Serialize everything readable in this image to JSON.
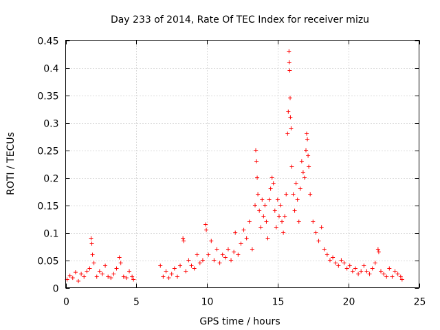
{
  "chart_data": {
    "type": "scatter",
    "title": "Day 233 of 2014, Rate Of TEC Index for receiver mizu",
    "xlabel": "GPS time / hours",
    "ylabel": "ROTI / TECUs",
    "xlim": [
      0,
      25
    ],
    "ylim": [
      0,
      0.45
    ],
    "x_ticks": [
      0,
      5,
      10,
      15,
      20,
      25
    ],
    "x_tick_labels": [
      "0",
      "5",
      "10",
      "15",
      "20",
      "25"
    ],
    "y_ticks": [
      0,
      0.05,
      0.1,
      0.15,
      0.2,
      0.25,
      0.3,
      0.35,
      0.4,
      0.45
    ],
    "y_tick_labels": [
      "0",
      "0.05",
      "0.1",
      "0.15",
      "0.2",
      "0.25",
      "0.3",
      "0.35",
      "0.4",
      "0.45"
    ],
    "grid": true,
    "marker": "+",
    "color": "#ff0000",
    "series": [
      {
        "name": "ROTI",
        "points": [
          [
            0.1,
            0.015
          ],
          [
            0.3,
            0.022
          ],
          [
            0.5,
            0.018
          ],
          [
            0.7,
            0.028
          ],
          [
            0.9,
            0.012
          ],
          [
            1.1,
            0.025
          ],
          [
            1.3,
            0.02
          ],
          [
            1.5,
            0.03
          ],
          [
            1.7,
            0.035
          ],
          [
            1.8,
            0.09
          ],
          [
            1.85,
            0.08
          ],
          [
            1.9,
            0.06
          ],
          [
            2.0,
            0.045
          ],
          [
            2.2,
            0.02
          ],
          [
            2.4,
            0.03
          ],
          [
            2.6,
            0.025
          ],
          [
            2.8,
            0.04
          ],
          [
            3.0,
            0.02
          ],
          [
            3.2,
            0.018
          ],
          [
            3.4,
            0.025
          ],
          [
            3.6,
            0.035
          ],
          [
            3.8,
            0.055
          ],
          [
            3.9,
            0.045
          ],
          [
            4.1,
            0.02
          ],
          [
            4.3,
            0.018
          ],
          [
            4.5,
            0.03
          ],
          [
            4.7,
            0.02
          ],
          [
            4.8,
            0.015
          ],
          [
            6.7,
            0.04
          ],
          [
            6.9,
            0.02
          ],
          [
            7.1,
            0.03
          ],
          [
            7.3,
            0.018
          ],
          [
            7.5,
            0.025
          ],
          [
            7.7,
            0.035
          ],
          [
            7.9,
            0.02
          ],
          [
            8.1,
            0.04
          ],
          [
            8.3,
            0.09
          ],
          [
            8.35,
            0.085
          ],
          [
            8.5,
            0.03
          ],
          [
            8.7,
            0.05
          ],
          [
            8.9,
            0.04
          ],
          [
            9.1,
            0.035
          ],
          [
            9.3,
            0.06
          ],
          [
            9.5,
            0.045
          ],
          [
            9.7,
            0.05
          ],
          [
            9.9,
            0.115
          ],
          [
            9.95,
            0.105
          ],
          [
            10.1,
            0.06
          ],
          [
            10.3,
            0.085
          ],
          [
            10.5,
            0.05
          ],
          [
            10.7,
            0.07
          ],
          [
            10.9,
            0.045
          ],
          [
            11.1,
            0.06
          ],
          [
            11.3,
            0.055
          ],
          [
            11.5,
            0.07
          ],
          [
            11.7,
            0.05
          ],
          [
            11.9,
            0.065
          ],
          [
            12.0,
            0.1
          ],
          [
            12.2,
            0.06
          ],
          [
            12.4,
            0.08
          ],
          [
            12.6,
            0.105
          ],
          [
            12.8,
            0.09
          ],
          [
            13.0,
            0.12
          ],
          [
            13.2,
            0.07
          ],
          [
            13.4,
            0.15
          ],
          [
            13.45,
            0.25
          ],
          [
            13.5,
            0.23
          ],
          [
            13.55,
            0.2
          ],
          [
            13.6,
            0.17
          ],
          [
            13.7,
            0.14
          ],
          [
            13.8,
            0.11
          ],
          [
            13.9,
            0.16
          ],
          [
            14.0,
            0.13
          ],
          [
            14.1,
            0.15
          ],
          [
            14.2,
            0.12
          ],
          [
            14.3,
            0.09
          ],
          [
            14.4,
            0.16
          ],
          [
            14.5,
            0.18
          ],
          [
            14.6,
            0.2
          ],
          [
            14.7,
            0.19
          ],
          [
            14.8,
            0.14
          ],
          [
            14.9,
            0.11
          ],
          [
            15.0,
            0.16
          ],
          [
            15.1,
            0.13
          ],
          [
            15.2,
            0.15
          ],
          [
            15.3,
            0.12
          ],
          [
            15.4,
            0.1
          ],
          [
            15.5,
            0.13
          ],
          [
            15.6,
            0.17
          ],
          [
            15.7,
            0.28
          ],
          [
            15.75,
            0.32
          ],
          [
            15.8,
            0.43
          ],
          [
            15.82,
            0.41
          ],
          [
            15.85,
            0.395
          ],
          [
            15.88,
            0.345
          ],
          [
            15.9,
            0.31
          ],
          [
            15.95,
            0.29
          ],
          [
            16.0,
            0.22
          ],
          [
            16.1,
            0.17
          ],
          [
            16.2,
            0.14
          ],
          [
            16.3,
            0.19
          ],
          [
            16.4,
            0.16
          ],
          [
            16.5,
            0.12
          ],
          [
            16.6,
            0.18
          ],
          [
            16.7,
            0.23
          ],
          [
            16.8,
            0.21
          ],
          [
            16.9,
            0.2
          ],
          [
            17.0,
            0.25
          ],
          [
            17.05,
            0.28
          ],
          [
            17.1,
            0.27
          ],
          [
            17.15,
            0.24
          ],
          [
            17.2,
            0.22
          ],
          [
            17.3,
            0.17
          ],
          [
            17.5,
            0.12
          ],
          [
            17.7,
            0.1
          ],
          [
            17.9,
            0.085
          ],
          [
            18.1,
            0.11
          ],
          [
            18.3,
            0.07
          ],
          [
            18.5,
            0.06
          ],
          [
            18.7,
            0.05
          ],
          [
            18.9,
            0.055
          ],
          [
            19.1,
            0.045
          ],
          [
            19.3,
            0.04
          ],
          [
            19.5,
            0.05
          ],
          [
            19.7,
            0.045
          ],
          [
            19.9,
            0.035
          ],
          [
            20.1,
            0.04
          ],
          [
            20.3,
            0.03
          ],
          [
            20.5,
            0.035
          ],
          [
            20.7,
            0.025
          ],
          [
            20.9,
            0.03
          ],
          [
            21.1,
            0.04
          ],
          [
            21.3,
            0.03
          ],
          [
            21.5,
            0.025
          ],
          [
            21.7,
            0.035
          ],
          [
            21.9,
            0.045
          ],
          [
            22.1,
            0.07
          ],
          [
            22.15,
            0.065
          ],
          [
            22.3,
            0.03
          ],
          [
            22.5,
            0.025
          ],
          [
            22.7,
            0.02
          ],
          [
            22.9,
            0.035
          ],
          [
            23.1,
            0.02
          ],
          [
            23.3,
            0.03
          ],
          [
            23.5,
            0.025
          ],
          [
            23.7,
            0.02
          ],
          [
            23.8,
            0.015
          ]
        ]
      }
    ]
  }
}
